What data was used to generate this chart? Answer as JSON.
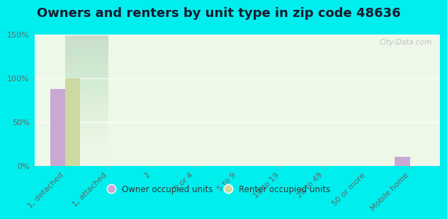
{
  "title": "Owners and renters by unit type in zip code 48636",
  "categories": [
    "1, detached",
    "1, attached",
    "2",
    "3 or 4",
    "5 to 9",
    "10 to 19",
    "20 to 49",
    "50 or more",
    "Mobile home"
  ],
  "owner_values": [
    88,
    0,
    0,
    0,
    0,
    0,
    0,
    0,
    10
  ],
  "renter_values": [
    100,
    0,
    0,
    0,
    0,
    0,
    0,
    0,
    0
  ],
  "owner_color": "#c9a8d4",
  "renter_color": "#cdd9a0",
  "background_plot_top": "#d8edd8",
  "background_plot_bottom": "#eef8e8",
  "background_fig": "#00eeee",
  "ylim": [
    0,
    150
  ],
  "yticks": [
    0,
    50,
    100,
    150
  ],
  "ytick_labels": [
    "0%",
    "50%",
    "100%",
    "150%"
  ],
  "bar_width": 0.35,
  "legend_owner": "Owner occupied units",
  "legend_renter": "Renter occupied units",
  "watermark": "City-Data.com",
  "title_fontsize": 13,
  "axis_fontsize": 8
}
